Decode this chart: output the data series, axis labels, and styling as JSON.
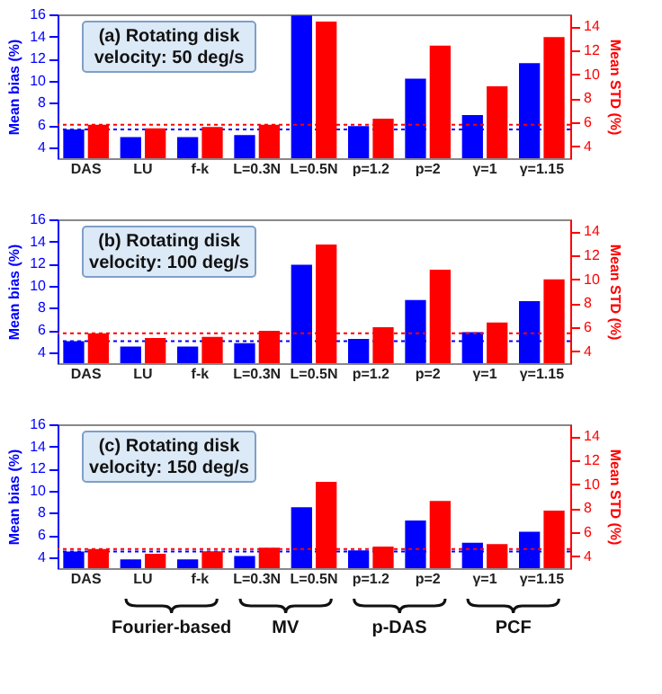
{
  "chart_data": [
    {
      "type": "bar",
      "title": "(a) Rotating disk velocity: 50 deg/s",
      "ylabel": "Mean bias (%)",
      "y2label": "Mean STD (%)",
      "categories": [
        "DAS",
        "LU",
        "f-k",
        "L=0.3N",
        "L=0.5N",
        "p=1.2",
        "p=2",
        "γ=1",
        "γ=1.15"
      ],
      "series": [
        {
          "color": "#0000ff",
          "values": [
            5.6,
            4.9,
            4.9,
            5.1,
            15.9,
            5.9,
            10.2,
            6.9,
            11.6
          ]
        },
        {
          "color": "#ff0000",
          "axis": "y2",
          "values": [
            5.8,
            5.5,
            5.6,
            5.8,
            14.4,
            6.3,
            12.4,
            9.0,
            13.1
          ]
        }
      ],
      "ylim": [
        3,
        16
      ],
      "yticks": [
        4,
        6,
        8,
        10,
        12,
        14,
        16
      ],
      "y2lim": [
        3,
        15
      ],
      "y2ticks": [
        4,
        6,
        8,
        10,
        12,
        14
      ],
      "ref_lines": [
        {
          "axis": "y",
          "value": 5.6,
          "color": "#0000ff",
          "line_style": "dotted"
        },
        {
          "axis": "y2",
          "value": 5.8,
          "color": "#ff0000",
          "line_style": "dotted"
        }
      ]
    },
    {
      "type": "bar",
      "title": "(b) Rotating disk velocity: 100 deg/s",
      "ylabel": "Mean bias (%)",
      "y2label": "Mean STD (%)",
      "categories": [
        "DAS",
        "LU",
        "f-k",
        "L=0.3N",
        "L=0.5N",
        "p=1.2",
        "p=2",
        "γ=1",
        "γ=1.15"
      ],
      "series": [
        {
          "color": "#0000ff",
          "values": [
            5.0,
            4.5,
            4.5,
            4.8,
            11.9,
            5.2,
            8.7,
            5.8,
            8.6
          ]
        },
        {
          "color": "#ff0000",
          "axis": "y2",
          "values": [
            5.5,
            5.1,
            5.2,
            5.7,
            12.9,
            6.0,
            10.8,
            6.4,
            10.0
          ]
        }
      ],
      "ylim": [
        3,
        16
      ],
      "yticks": [
        4,
        6,
        8,
        10,
        12,
        14,
        16
      ],
      "y2lim": [
        3,
        15
      ],
      "y2ticks": [
        4,
        6,
        8,
        10,
        12,
        14
      ],
      "ref_lines": [
        {
          "axis": "y",
          "value": 5.0,
          "color": "#0000ff",
          "line_style": "dotted"
        },
        {
          "axis": "y2",
          "value": 5.5,
          "color": "#ff0000",
          "line_style": "dotted"
        }
      ]
    },
    {
      "type": "bar",
      "title": "(c) Rotating disk velocity: 150 deg/s",
      "ylabel": "Mean bias (%)",
      "y2label": "Mean STD (%)",
      "categories": [
        "DAS",
        "LU",
        "f-k",
        "L=0.3N",
        "L=0.5N",
        "p=1.2",
        "p=2",
        "γ=1",
        "γ=1.15"
      ],
      "series": [
        {
          "color": "#0000ff",
          "values": [
            4.5,
            3.8,
            3.8,
            4.1,
            8.5,
            4.6,
            7.3,
            5.3,
            6.3
          ]
        },
        {
          "color": "#ff0000",
          "axis": "y2",
          "values": [
            4.6,
            4.2,
            4.4,
            4.7,
            10.2,
            4.8,
            8.6,
            5.0,
            7.8
          ]
        }
      ],
      "ylim": [
        3,
        16
      ],
      "yticks": [
        4,
        6,
        8,
        10,
        12,
        14,
        16
      ],
      "y2lim": [
        3,
        15
      ],
      "y2ticks": [
        4,
        6,
        8,
        10,
        12,
        14
      ],
      "ref_lines": [
        {
          "axis": "y",
          "value": 4.5,
          "color": "#0000ff",
          "line_style": "dotted"
        },
        {
          "axis": "y2",
          "value": 4.6,
          "color": "#ff0000",
          "line_style": "dotted"
        }
      ],
      "annotations": [
        "Fourier-based",
        "MV",
        "p-DAS",
        "PCF"
      ]
    }
  ]
}
